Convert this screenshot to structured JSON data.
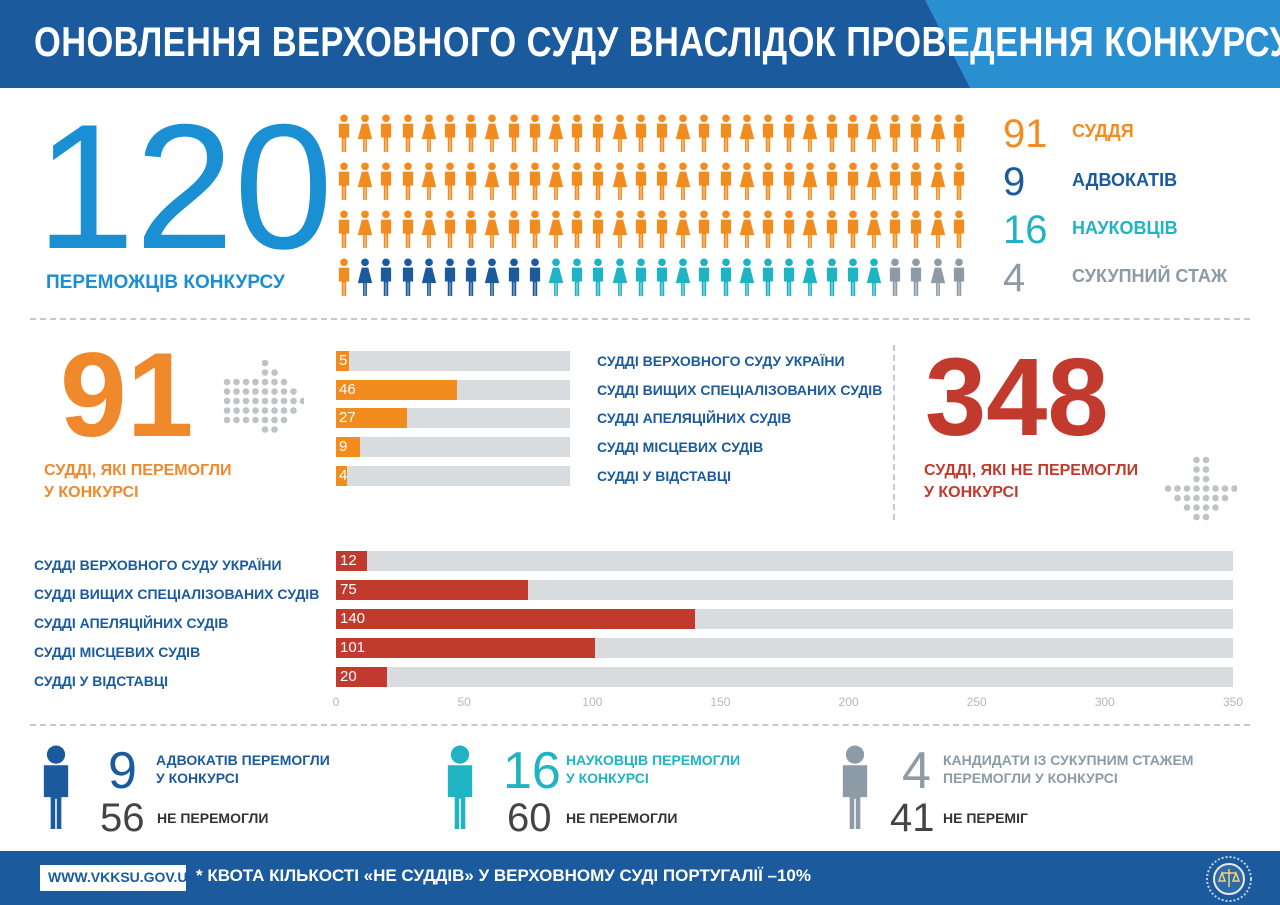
{
  "header": {
    "title": "ОНОВЛЕННЯ ВЕРХОВНОГО СУДУ ВНАСЛІДОК ПРОВЕДЕННЯ КОНКУРСУ"
  },
  "top": {
    "total": "120",
    "total_label": "ПЕРЕМОЖЦІВ КОНКУРСУ",
    "legend": [
      {
        "num": "91",
        "label": "СУДДЯ",
        "color": "#f28c1e"
      },
      {
        "num": "9",
        "label": "АДВОКАТІВ",
        "color": "#1b5a9c"
      },
      {
        "num": "16",
        "label": "НАУКОВЦІВ",
        "color": "#1fb3c4"
      },
      {
        "num": "4",
        "label": "СУКУПНИЙ СТАЖ",
        "color": "#8c9ba5"
      }
    ],
    "people_per_row": 30,
    "icon_names": {
      "male": "man-icon",
      "female": "woman-icon"
    }
  },
  "winners": {
    "num": "91",
    "label_line1": "СУДДІ, ЯКІ ПЕРЕМОГЛИ",
    "label_line2": "У КОНКУРСІ"
  },
  "losers": {
    "num": "348",
    "label_line1": "СУДДІ, ЯКІ НЕ ПЕРЕМОГЛИ",
    "label_line2": "У КОНКУРСІ"
  },
  "bottom": [
    {
      "num": "9",
      "text1": "АДВОКАТІВ ПЕРЕМОГЛИ",
      "text2": "У КОНКУРСІ",
      "lost": "56",
      "lost_label": "НЕ ПЕРЕМОГЛИ",
      "color": "#1b5a9c"
    },
    {
      "num": "16",
      "text1": "НАУКОВЦІВ ПЕРЕМОГЛИ",
      "text2": "У КОНКУРСІ",
      "lost": "60",
      "lost_label": "НЕ ПЕРЕМОГЛИ",
      "color": "#1fb3c4"
    },
    {
      "num": "4",
      "text1": "КАНДИДАТИ ІЗ СУКУПНИМ СТАЖЕМ",
      "text2": "ПЕРЕМОГЛИ У КОНКУРСІ",
      "lost": "41",
      "lost_label": "НЕ ПЕРЕМІГ",
      "color": "#8c9ba5"
    }
  ],
  "footer": {
    "url": "WWW.VKKSU.GOV.UA",
    "note": "* КВОТА КІЛЬКОСТІ «НЕ СУДДІВ» У ВЕРХОВНОМУ СУДІ ПОРТУГАЛІЇ –10%"
  },
  "chart_data": [
    {
      "type": "bar",
      "orientation": "horizontal",
      "categories": [
        "СУДДІ ВЕРХОВНОГО СУДУ УКРАЇНИ",
        "СУДДІ ВИЩИХ СПЕЦІАЛІЗОВАНИХ СУДІВ",
        "СУДДІ АПЕЛЯЦІЙНИХ СУДІВ",
        "СУДДІ МІСЦЕВИХ СУДІВ",
        "СУДДІ У ВІДСТАВЦІ"
      ],
      "values": [
        5,
        46,
        27,
        9,
        4
      ],
      "value_labels": [
        "5",
        "46",
        "27",
        "9",
        "4"
      ],
      "xlim": [
        0,
        91
      ],
      "bar_color": "#f28c1e",
      "track_color": "#d9dcde"
    },
    {
      "type": "bar",
      "orientation": "horizontal",
      "categories": [
        "СУДДІ ВЕРХОВНОГО СУДУ УКРАЇНИ",
        "СУДДІ ВИЩИХ СПЕЦІАЛІЗОВАНИХ СУДІВ",
        "СУДДІ АПЕЛЯЦІЙНИХ СУДІВ",
        "СУДДІ МІСЦЕВИХ СУДІВ",
        "СУДДІ У ВІДСТАВЦІ"
      ],
      "values": [
        12,
        75,
        140,
        101,
        20
      ],
      "value_labels": [
        "12",
        "75",
        "140",
        "101",
        "20"
      ],
      "xlim": [
        0,
        350
      ],
      "xticks": [
        "0",
        "50",
        "100",
        "150",
        "200",
        "250",
        "300",
        "350"
      ],
      "bar_color": "#c23a2e",
      "track_color": "#d9dcde"
    }
  ]
}
